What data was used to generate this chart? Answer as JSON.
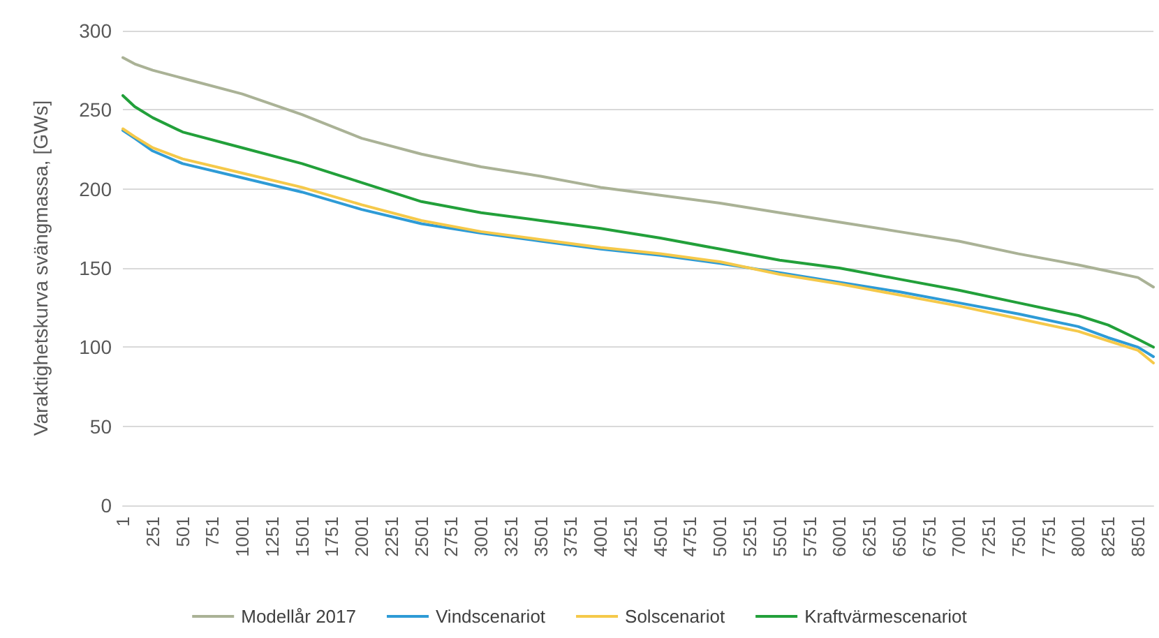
{
  "chart_data": {
    "type": "line",
    "ylabel": "Varaktighetskurva svängmassa, [GWs]",
    "xlim": [
      1,
      8630
    ],
    "xticks": [
      1,
      251,
      501,
      751,
      1001,
      1251,
      1501,
      1751,
      2001,
      2251,
      2501,
      2751,
      3001,
      3251,
      3501,
      3751,
      4001,
      4251,
      4501,
      4751,
      5001,
      5251,
      5501,
      5751,
      6001,
      6251,
      6501,
      6751,
      7001,
      7251,
      7501,
      7751,
      8001,
      8251,
      8501
    ],
    "ylim": [
      0,
      300
    ],
    "yticks": [
      0,
      50,
      100,
      150,
      200,
      250,
      300
    ],
    "grid": "y",
    "legend": "bottom",
    "marker": "none",
    "line_style": "solid",
    "x": [
      1,
      100,
      251,
      501,
      1001,
      1501,
      2001,
      2501,
      3001,
      3501,
      4001,
      4501,
      5001,
      5501,
      6001,
      6501,
      7001,
      7501,
      8001,
      8251,
      8501,
      8630
    ],
    "series": [
      {
        "name": "Modellår 2017",
        "color": "#aab296",
        "values": [
          283,
          279,
          275,
          270,
          260,
          247,
          232,
          222,
          214,
          208,
          201,
          196,
          191,
          185,
          179,
          173,
          167,
          159,
          152,
          148,
          144,
          138
        ]
      },
      {
        "name": "Vindscenariot",
        "color": "#2e9bd6",
        "values": [
          237,
          232,
          224,
          216,
          207,
          198,
          187,
          178,
          172,
          167,
          162,
          158,
          153,
          147,
          141,
          135,
          128,
          121,
          113,
          106,
          100,
          94
        ]
      },
      {
        "name": "Solscenariot",
        "color": "#f5c94a",
        "values": [
          238,
          233,
          226,
          219,
          210,
          201,
          190,
          180,
          173,
          168,
          163,
          159,
          154,
          146,
          140,
          133,
          126,
          118,
          110,
          104,
          98,
          90
        ]
      },
      {
        "name": "Kraftvärmescenariot",
        "color": "#22a03a",
        "values": [
          259,
          252,
          245,
          236,
          226,
          216,
          204,
          192,
          185,
          180,
          175,
          169,
          162,
          155,
          150,
          143,
          136,
          128,
          120,
          114,
          105,
          100
        ]
      }
    ]
  }
}
